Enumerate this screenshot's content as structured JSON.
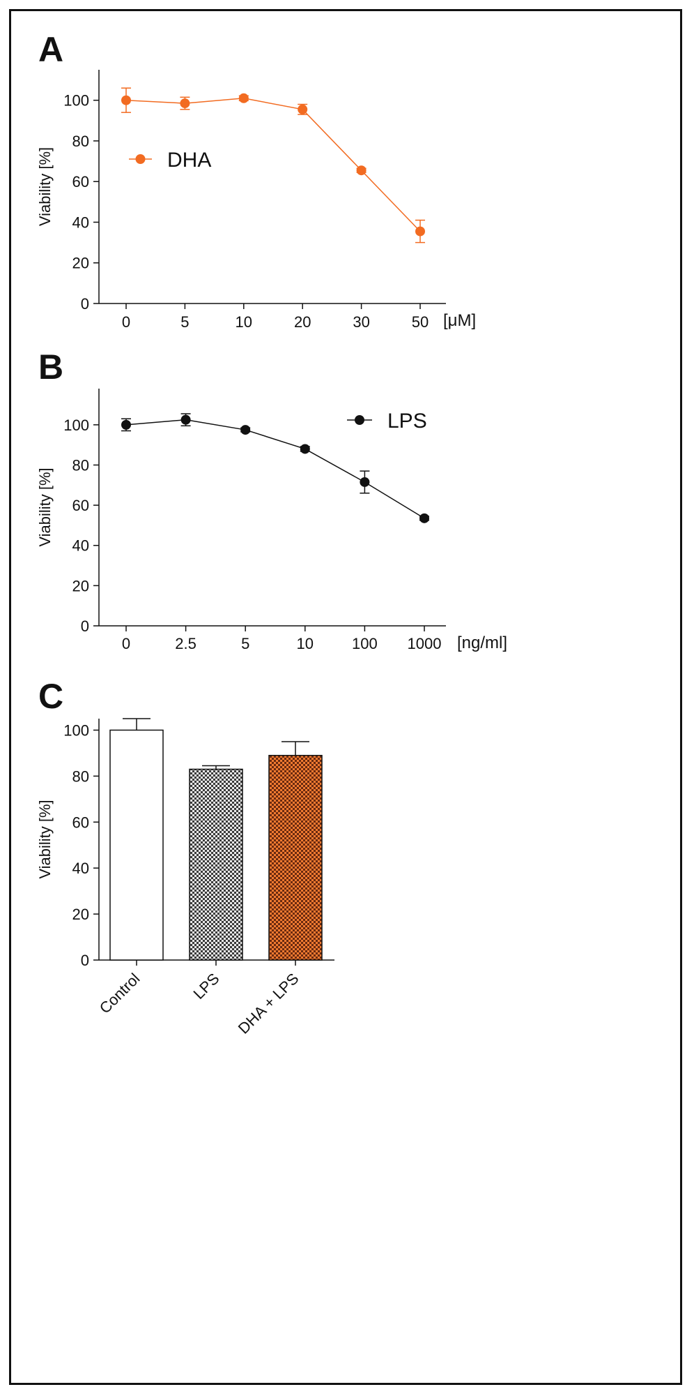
{
  "chart_data": [
    {
      "panel": "A",
      "type": "line",
      "categories": [
        "0",
        "5",
        "10",
        "20",
        "30",
        "50"
      ],
      "x_unit": "[μM]",
      "ylabel": "Viability [%]",
      "ylim": [
        0,
        115
      ],
      "yticks": [
        0,
        20,
        40,
        60,
        80,
        100
      ],
      "legend": "top-left",
      "series": [
        {
          "name": "DHA",
          "color": "#f26b21",
          "values": [
            100,
            98.5,
            101,
            95.5,
            65.5,
            35.5
          ],
          "errors": [
            6,
            3,
            1.2,
            2.5,
            1,
            5.5
          ]
        }
      ]
    },
    {
      "panel": "B",
      "type": "line",
      "categories": [
        "0",
        "2.5",
        "5",
        "10",
        "100",
        "1000"
      ],
      "x_unit": "[ng/ml]",
      "ylabel": "Viability [%]",
      "ylim": [
        0,
        118
      ],
      "yticks": [
        0,
        20,
        40,
        60,
        80,
        100
      ],
      "legend": "top-right",
      "series": [
        {
          "name": "LPS",
          "color": "#111111",
          "values": [
            100,
            102.5,
            97.5,
            88,
            71.5,
            53.5
          ],
          "errors": [
            3,
            3,
            1,
            1.2,
            5.5,
            1
          ]
        }
      ]
    },
    {
      "panel": "C",
      "type": "bar",
      "categories": [
        "Control",
        "LPS",
        "DHA + LPS"
      ],
      "ylabel": "Viability [%]",
      "ylim": [
        0,
        105
      ],
      "yticks": [
        0,
        20,
        40,
        60,
        80,
        100
      ],
      "values": [
        100,
        83,
        89
      ],
      "errors": [
        5,
        1.5,
        6
      ],
      "fills": [
        "#ffffff",
        "#9a9a9a",
        "#e2641f"
      ]
    }
  ]
}
